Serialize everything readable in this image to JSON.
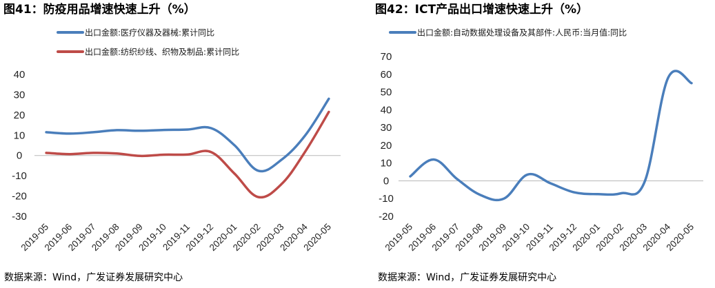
{
  "chart_data": [
    {
      "type": "line",
      "title": "图41：防疫用品增速快速上升（%）",
      "categories": [
        "2019-05",
        "2019-06",
        "2019-07",
        "2019-08",
        "2019-09",
        "2019-10",
        "2019-11",
        "2019-12",
        "2020-01",
        "2020-02",
        "2020-03",
        "2020-04",
        "2020-05"
      ],
      "ylim": [
        -30,
        40
      ],
      "yticks": [
        40,
        30,
        20,
        10,
        0,
        -10,
        -20,
        -30
      ],
      "legend_position": "top-left",
      "series": [
        {
          "name": "出口金额:医疗仪器及器械:累计同比",
          "color": "#4a7ebb",
          "values": [
            11.5,
            10.8,
            11.5,
            12.5,
            12.2,
            12.6,
            12.8,
            13.5,
            5.0,
            -7.5,
            -2.0,
            10.0,
            28.0
          ]
        },
        {
          "name": "出口金额:纺织纱线、织物及制品:累计同比",
          "color": "#be4b48",
          "values": [
            1.3,
            0.7,
            1.3,
            1.0,
            -0.2,
            0.4,
            0.5,
            1.7,
            -9.0,
            -20.5,
            -14.0,
            2.0,
            21.5
          ]
        }
      ],
      "source": "数据来源：Wind，广发证券发展研究中心"
    },
    {
      "type": "line",
      "title": "图42：ICT产品出口增速快速上升（%）",
      "categories": [
        "2019-05",
        "2019-06",
        "2019-07",
        "2019-08",
        "2019-09",
        "2019-10",
        "2019-11",
        "2019-12",
        "2020-01",
        "2020-02",
        "2020-03",
        "2020-04",
        "2020-05"
      ],
      "ylim": [
        -20,
        70
      ],
      "yticks": [
        70,
        60,
        50,
        40,
        30,
        20,
        10,
        0,
        -10,
        -20
      ],
      "legend_position": "top",
      "series": [
        {
          "name": "出口金额:自动数据处理设备及其部件:人民币:当月值:同比",
          "color": "#4a7ebb",
          "values": [
            2.5,
            12.0,
            1.0,
            -8.0,
            -10.0,
            3.5,
            -1.5,
            -6.5,
            -7.5,
            -7.0,
            -0.5,
            58.0,
            55.0
          ]
        }
      ],
      "source": "数据来源：Wind，广发证券发展研究中心"
    }
  ]
}
